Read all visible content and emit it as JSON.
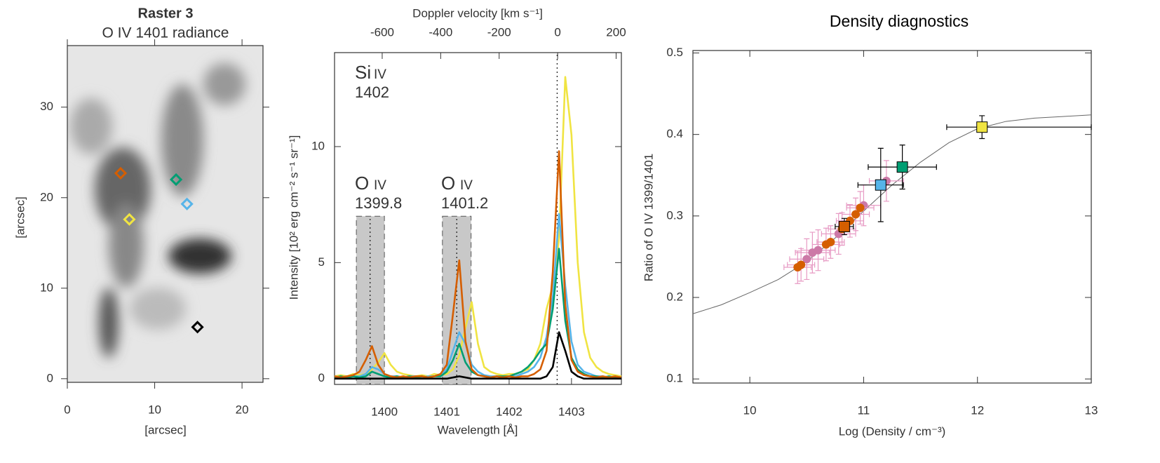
{
  "chart_data": [
    {
      "type": "scatter",
      "title": "Raster 3",
      "subtitle": "O IV 1401 radiance",
      "xlabel": "[arcsec]",
      "ylabel": "[arcsec]",
      "xlim": [
        0,
        22.4
      ],
      "ylim": [
        -0.4,
        36.8
      ],
      "xticks": [
        0,
        10,
        20
      ],
      "yticks": [
        0,
        10,
        20,
        30
      ],
      "marker": "diamond",
      "x": [
        6.1,
        12.45,
        13.7,
        7.1,
        14.9
      ],
      "y": [
        22.7,
        22.0,
        19.3,
        17.6,
        5.7
      ],
      "colors": [
        "#d55e00",
        "#009e73",
        "#56b4e9",
        "#f0e442",
        "#000000"
      ]
    },
    {
      "type": "line",
      "xlabel": "Wavelength [Å]",
      "ylabel": "Intensity [10² erg cm⁻² s⁻¹ sr⁻¹]",
      "x2label": "Doppler velocity [km s⁻¹]",
      "xlim": [
        1399.2,
        1403.8
      ],
      "xticks": [
        1400,
        1401,
        1402,
        1403
      ],
      "x2lim": [
        -763,
        218
      ],
      "x2ticks": [
        -600,
        -400,
        -200,
        0,
        200
      ],
      "ylim": [
        -0.25,
        14.05
      ],
      "yticks": [
        0,
        5,
        10
      ],
      "bands": [
        [
          1399.55,
          1400.0
        ],
        [
          1400.93,
          1401.39
        ]
      ],
      "band_top": 7,
      "ref_lines": [
        1399.77,
        1401.16,
        1402.77
      ],
      "annotations": [
        {
          "element": "Si",
          "ion": "IV",
          "label": "1402"
        },
        {
          "element": "O",
          "ion": "IV",
          "label": "1399.8"
        },
        {
          "element": "O",
          "ion": "IV",
          "label": "1401.2"
        }
      ],
      "x": [
        1399.2,
        1399.3,
        1399.4,
        1399.5,
        1399.6,
        1399.7,
        1399.8,
        1399.9,
        1400.0,
        1400.1,
        1400.2,
        1400.3,
        1400.4,
        1400.5,
        1400.6,
        1400.7,
        1400.8,
        1400.9,
        1401.0,
        1401.1,
        1401.2,
        1401.3,
        1401.4,
        1401.5,
        1401.6,
        1401.7,
        1401.8,
        1401.9,
        1402.0,
        1402.1,
        1402.2,
        1402.3,
        1402.4,
        1402.5,
        1402.6,
        1402.7,
        1402.8,
        1402.9,
        1403.0,
        1403.1,
        1403.2,
        1403.3,
        1403.4,
        1403.5,
        1403.6,
        1403.7,
        1403.8
      ],
      "series": [
        {
          "color": "#f0e442",
          "values": [
            0.1,
            0.15,
            0.1,
            0.2,
            0.15,
            0.2,
            0.4,
            0.7,
            1.1,
            0.6,
            0.3,
            0.2,
            0.15,
            0.1,
            0.15,
            0.1,
            0.2,
            0.15,
            0.2,
            0.4,
            1.0,
            2.2,
            3.3,
            1.5,
            0.5,
            0.3,
            0.2,
            0.15,
            0.2,
            0.2,
            0.3,
            0.4,
            0.8,
            1.5,
            3.0,
            4.0,
            6.0,
            13.0,
            10.5,
            5.0,
            2.0,
            0.9,
            0.5,
            0.3,
            0.2,
            0.15,
            0.1
          ]
        },
        {
          "color": "#56b4e9",
          "values": [
            0.1,
            0.05,
            0.1,
            0.1,
            0.1,
            0.2,
            0.5,
            0.4,
            0.2,
            0.1,
            0.1,
            0.05,
            0.1,
            0.1,
            0.05,
            0.1,
            0.1,
            0.2,
            0.4,
            1.2,
            2.0,
            1.5,
            0.6,
            0.3,
            0.15,
            0.1,
            0.1,
            0.05,
            0.1,
            0.1,
            0.2,
            0.3,
            0.5,
            0.9,
            1.8,
            3.5,
            7.1,
            4.0,
            1.6,
            0.6,
            0.3,
            0.2,
            0.1,
            0.1,
            0.05,
            0.1,
            0.05
          ]
        },
        {
          "color": "#009e73",
          "values": [
            0.05,
            0.1,
            0.05,
            0.1,
            0.05,
            0.1,
            0.3,
            0.2,
            0.1,
            0.05,
            0.1,
            0.05,
            0.1,
            0.05,
            0.1,
            0.05,
            0.1,
            0.1,
            0.3,
            0.8,
            1.5,
            0.7,
            0.3,
            0.15,
            0.1,
            0.05,
            0.1,
            0.1,
            0.1,
            0.2,
            0.3,
            0.5,
            0.8,
            1.2,
            1.5,
            3.0,
            5.6,
            2.5,
            0.9,
            0.4,
            0.2,
            0.1,
            0.1,
            0.05,
            0.1,
            0.05,
            0.05
          ]
        },
        {
          "color": "#d55e00",
          "values": [
            0.1,
            0.05,
            0.1,
            0.15,
            0.3,
            0.8,
            1.4,
            0.6,
            0.2,
            0.1,
            0.05,
            0.1,
            0.05,
            0.1,
            0.1,
            0.05,
            0.1,
            0.2,
            0.6,
            2.8,
            5.1,
            1.6,
            0.4,
            0.15,
            0.1,
            0.05,
            0.1,
            0.05,
            0.1,
            0.05,
            0.1,
            0.1,
            0.2,
            0.4,
            1.2,
            4.6,
            9.8,
            3.2,
            0.8,
            0.3,
            0.15,
            0.1,
            0.05,
            0.1,
            0.05,
            0.1,
            0.05
          ]
        },
        {
          "color": "#000000",
          "values": [
            0,
            0,
            0,
            0,
            0,
            0,
            0,
            0,
            0,
            0,
            0,
            0,
            0,
            0,
            0,
            0,
            0,
            0,
            0,
            0.05,
            0.1,
            0.05,
            0,
            0,
            0,
            0,
            0,
            0,
            0,
            0,
            0,
            0,
            0,
            0,
            0.1,
            0.5,
            2.0,
            1.2,
            0.3,
            0.1,
            0,
            0,
            0,
            0,
            0,
            0,
            0
          ]
        }
      ]
    },
    {
      "type": "scatter",
      "title": "Density diagnostics",
      "xlabel": "Log (Density / cm⁻³)",
      "ylabel": "Ratio of O IV 1399/1401",
      "xlim": [
        9.5,
        13
      ],
      "ylim": [
        0.095,
        0.503
      ],
      "xticks": [
        10,
        11,
        12,
        13
      ],
      "yticks": [
        0.1,
        0.2,
        0.3,
        0.4,
        0.5
      ],
      "curve": {
        "color": "#666666",
        "x": [
          9.5,
          9.75,
          10,
          10.25,
          10.5,
          10.75,
          11,
          11.25,
          11.5,
          11.75,
          12,
          12.25,
          12.5,
          12.75,
          13
        ],
        "y": [
          0.18,
          0.191,
          0.206,
          0.222,
          0.244,
          0.273,
          0.306,
          0.338,
          0.366,
          0.39,
          0.407,
          0.416,
          0.42,
          0.422,
          0.424
        ]
      },
      "series": [
        {
          "marker": "circle",
          "color": "#cc79a7",
          "errcolor": "#e79ac4",
          "x": [
            10.5,
            10.55,
            10.6,
            10.78,
            11.0,
            11.2
          ],
          "y": [
            0.247,
            0.255,
            0.258,
            0.278,
            0.313,
            0.343
          ],
          "xerr": [
            0.15,
            0.15,
            0.15,
            0.15,
            0.15,
            0.15
          ],
          "yerr": [
            0.025,
            0.025,
            0.025,
            0.025,
            0.025,
            0.025
          ]
        },
        {
          "marker": "circle",
          "color": "#d55e00",
          "errcolor": "#e79ac4",
          "x": [
            10.42,
            10.45,
            10.67,
            10.71,
            10.81,
            10.88,
            10.93,
            10.97
          ],
          "y": [
            0.237,
            0.24,
            0.265,
            0.268,
            0.284,
            0.294,
            0.302,
            0.31
          ],
          "xerr": [
            0.12,
            0.12,
            0.12,
            0.12,
            0.12,
            0.12,
            0.12,
            0.12
          ],
          "yerr": [
            0.02,
            0.02,
            0.02,
            0.02,
            0.02,
            0.02,
            0.02,
            0.02
          ]
        },
        {
          "marker": "square",
          "colors": [
            "#d55e00",
            "#56b4e9",
            "#009e73",
            "#f0e442"
          ],
          "errcolor": "#000000",
          "x": [
            10.83,
            11.15,
            11.34,
            12.04
          ],
          "y": [
            0.287,
            0.338,
            0.36,
            0.409
          ],
          "xerr": [
            0.08,
            0.2,
            0.3,
            [
              0.31,
              0.96
            ]
          ],
          "yerr": [
            0.01,
            0.045,
            0.027,
            0.014
          ]
        }
      ]
    }
  ]
}
